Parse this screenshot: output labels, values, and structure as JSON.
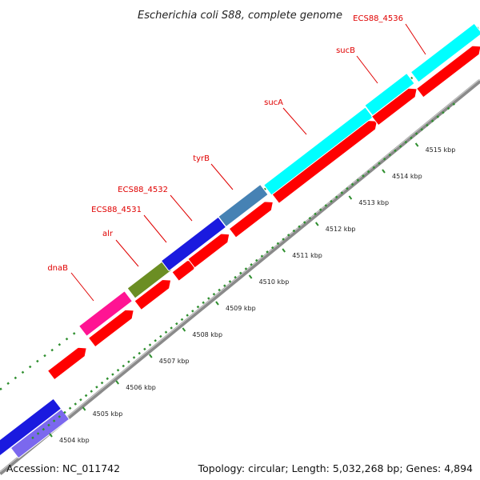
{
  "title": "Escherichia coli S88, complete genome",
  "footer": {
    "accession": "Accession: NC_011742",
    "summary": "Topology: circular; Length: 5,032,268 bp; Genes: 4,894"
  },
  "colors": {
    "background": "#ffffff",
    "backbone": "#8a8a8a",
    "label": "#e00000",
    "ticks": "#2f8f2f",
    "forward_default": "#ff0000"
  },
  "scale_labels": [
    "4504 kbp",
    "4505 kbp",
    "4506 kbp",
    "4507 kbp",
    "4508 kbp",
    "4509 kbp",
    "4510 kbp",
    "4511 kbp",
    "4512 kbp",
    "4513 kbp",
    "4514 kbp",
    "4515 kbp"
  ],
  "genes_outer": [
    {
      "name": "dnaB",
      "color": "#ff1493"
    },
    {
      "name": "alr",
      "color": "#6b8e23"
    },
    {
      "name": "ECS88_4531",
      "color": "#1a1adf"
    },
    {
      "name": "ECS88_4532",
      "color": "#1a1adf"
    },
    {
      "name": "tyrB",
      "color": "#4682b4"
    },
    {
      "name": "sucA",
      "color": "#00ffff"
    },
    {
      "name": "sucB",
      "color": "#00ffff"
    },
    {
      "name": "ECS88_4536",
      "color": "#00ffff"
    }
  ],
  "genes_lower": [
    {
      "name": "",
      "color": "#1a1adf"
    },
    {
      "name": "",
      "color": "#7b68ee"
    }
  ]
}
